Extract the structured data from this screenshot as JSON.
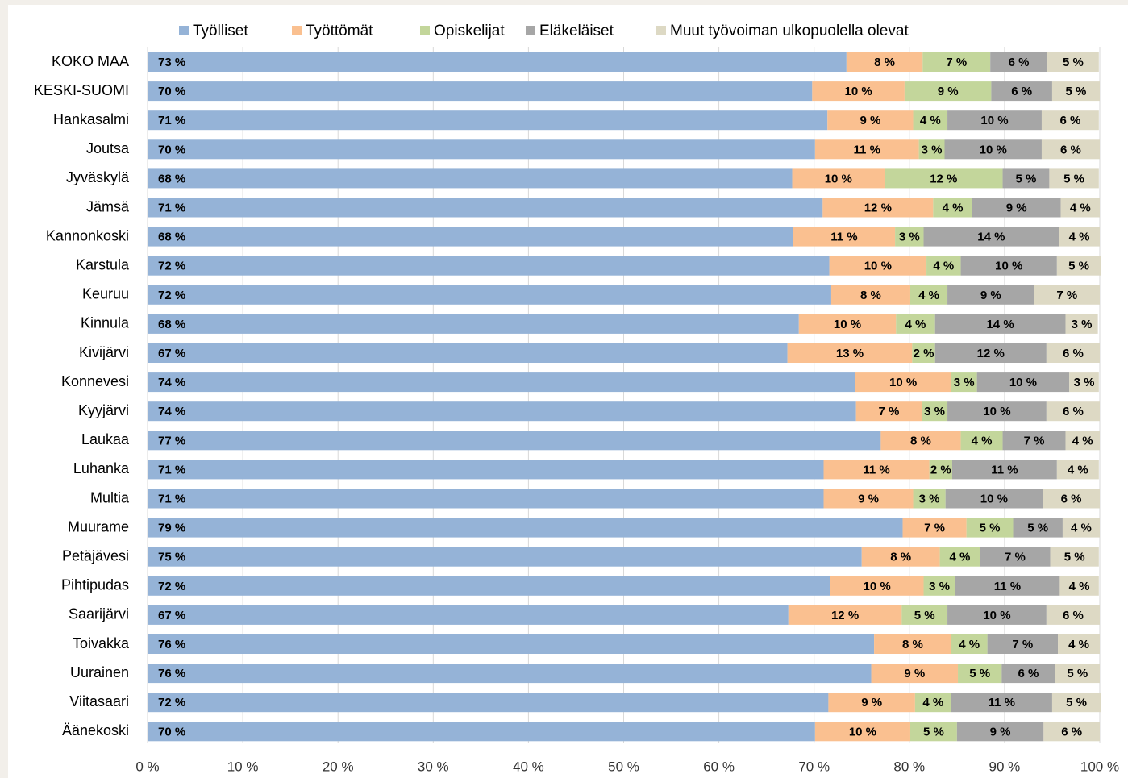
{
  "chart_data": {
    "type": "stacked_bar_horizontal",
    "categories": [
      "KOKO MAA",
      "KESKI-SUOMI",
      "Hankasalmi",
      "Joutsa",
      "Jyväskylä",
      "Jämsä",
      "Kannonkoski",
      "Karstula",
      "Keuruu",
      "Kinnula",
      "Kivijärvi",
      "Konnevesi",
      "Kyyjärvi",
      "Laukaa",
      "Luhanka",
      "Multia",
      "Muurame",
      "Petäjävesi",
      "Pihtipudas",
      "Saarijärvi",
      "Toivakka",
      "Uurainen",
      "Viitasaari",
      "Äänekoski"
    ],
    "series": [
      {
        "name": "Työlliset",
        "color": "#95b3d7",
        "values": [
          73.4,
          69.8,
          71.4,
          70.1,
          67.7,
          70.9,
          67.8,
          71.6,
          71.8,
          68.4,
          67.2,
          74.3,
          74.4,
          77.0,
          71.0,
          71.0,
          79.3,
          75.0,
          71.7,
          67.3,
          76.3,
          76.0,
          71.5,
          70.1
        ],
        "value_labels": [
          "73 %",
          "70 %",
          "71 %",
          "70 %",
          "68 %",
          "71 %",
          "68 %",
          "72 %",
          "72 %",
          "68 %",
          "67 %",
          "74 %",
          "74 %",
          "77 %",
          "71 %",
          "71 %",
          "79 %",
          "75 %",
          "72 %",
          "67 %",
          "76 %",
          "76 %",
          "72 %",
          "70 %"
        ]
      },
      {
        "name": "Työttömät",
        "color": "#fac090",
        "values": [
          8.0,
          9.7,
          9.0,
          10.9,
          9.7,
          11.6,
          10.7,
          10.2,
          8.3,
          10.2,
          13.1,
          10.1,
          6.9,
          8.4,
          11.1,
          9.4,
          6.7,
          8.2,
          9.8,
          11.9,
          8.1,
          9.1,
          9.1,
          10.0
        ],
        "value_labels": [
          "8 %",
          "10 %",
          "9 %",
          "11 %",
          "10 %",
          "12 %",
          "11 %",
          "10 %",
          "8 %",
          "10 %",
          "13 %",
          "10 %",
          "7 %",
          "8 %",
          "11 %",
          "9 %",
          "7 %",
          "8 %",
          "10 %",
          "12 %",
          "8 %",
          "9 %",
          "9 %",
          "10 %"
        ]
      },
      {
        "name": "Opiskelijat",
        "color": "#c3d69b",
        "values": [
          7.1,
          9.1,
          3.6,
          2.7,
          12.4,
          4.1,
          3.0,
          3.6,
          3.9,
          4.1,
          2.4,
          2.7,
          2.7,
          4.4,
          2.4,
          3.4,
          4.9,
          4.2,
          3.3,
          4.8,
          3.8,
          4.6,
          3.8,
          4.9
        ],
        "value_labels": [
          "7 %",
          "9 %",
          "4 %",
          "3 %",
          "12 %",
          "4 %",
          "3 %",
          "4 %",
          "4 %",
          "4 %",
          "2 %",
          "3 %",
          "3 %",
          "4 %",
          "2 %",
          "3 %",
          "5 %",
          "4 %",
          "3 %",
          "5 %",
          "4 %",
          "5 %",
          "4 %",
          "5 %"
        ]
      },
      {
        "name": "Eläkeläiset",
        "color": "#a6a6a6",
        "values": [
          6.0,
          6.4,
          9.9,
          10.2,
          4.9,
          9.3,
          14.2,
          10.1,
          9.1,
          13.7,
          11.7,
          9.7,
          10.4,
          6.6,
          11.0,
          10.2,
          5.2,
          7.4,
          11.0,
          10.4,
          7.4,
          5.6,
          10.6,
          9.1
        ],
        "value_labels": [
          "6 %",
          "6 %",
          "10 %",
          "10 %",
          "5 %",
          "9 %",
          "14 %",
          "10 %",
          "9 %",
          "14 %",
          "12 %",
          "10 %",
          "10 %",
          "7 %",
          "11 %",
          "10 %",
          "5 %",
          "7 %",
          "11 %",
          "10 %",
          "7 %",
          "6 %",
          "11 %",
          "9 %"
        ]
      },
      {
        "name": "Muut työvoiman ulkopuolella olevat",
        "color": "#ddd9c4",
        "values": [
          5.4,
          5.0,
          6.0,
          6.1,
          5.2,
          4.1,
          4.3,
          4.6,
          6.9,
          3.4,
          5.6,
          3.1,
          5.6,
          3.6,
          4.4,
          6.0,
          3.9,
          5.1,
          4.1,
          5.6,
          4.4,
          4.7,
          5.1,
          5.9
        ],
        "value_labels": [
          "5 %",
          "5 %",
          "6 %",
          "6 %",
          "5 %",
          "4 %",
          "4 %",
          "5 %",
          "7 %",
          "3 %",
          "6 %",
          "3 %",
          "6 %",
          "4 %",
          "4 %",
          "6 %",
          "4 %",
          "5 %",
          "4 %",
          "6 %",
          "4 %",
          "5 %",
          "5 %",
          "6 %"
        ]
      }
    ],
    "xlim": [
      0,
      100
    ],
    "xticks": [
      {
        "value": 0,
        "label": "0 %"
      },
      {
        "value": 10,
        "label": "10 %"
      },
      {
        "value": 20,
        "label": "20 %"
      },
      {
        "value": 30,
        "label": "30 %"
      },
      {
        "value": 40,
        "label": "40 %"
      },
      {
        "value": 50,
        "label": "50 %"
      },
      {
        "value": 60,
        "label": "60 %"
      },
      {
        "value": 70,
        "label": "70 %"
      },
      {
        "value": 80,
        "label": "80 %"
      },
      {
        "value": 90,
        "label": "90 %"
      },
      {
        "value": 100,
        "label": "100 %"
      }
    ],
    "grid": true,
    "legend": "top"
  }
}
